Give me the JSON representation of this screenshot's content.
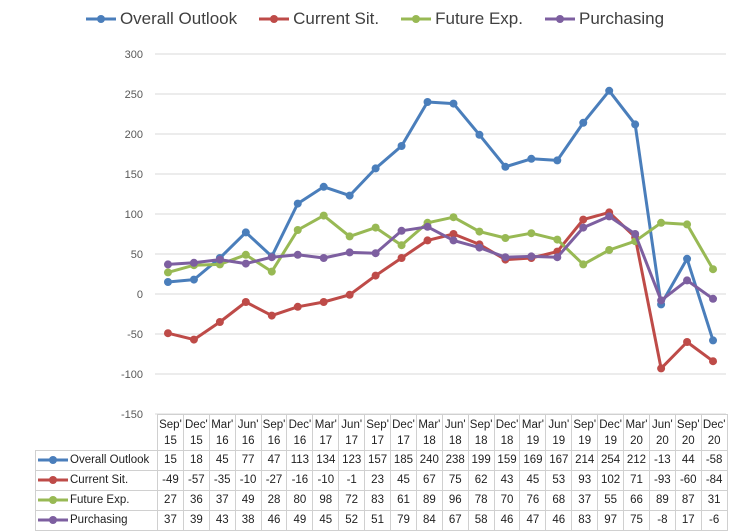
{
  "chart_data": {
    "type": "line",
    "categories": [
      "Sep' 15",
      "Dec' 15",
      "Mar' 16",
      "Jun' 16",
      "Sep' 16",
      "Dec' 16",
      "Mar' 17",
      "Jun' 17",
      "Sep' 17",
      "Dec' 17",
      "Mar' 18",
      "Jun' 18",
      "Sep' 18",
      "Dec' 18",
      "Mar' 19",
      "Jun' 19",
      "Sep' 19",
      "Dec' 19",
      "Mar' 20",
      "Jun' 20",
      "Sep' 20",
      "Dec' 20"
    ],
    "series": [
      {
        "name": "Overall Outlook",
        "color": "#4a7ebb",
        "values": [
          15,
          18,
          45,
          77,
          47,
          113,
          134,
          123,
          157,
          185,
          240,
          238,
          199,
          159,
          169,
          167,
          214,
          254,
          212,
          -13,
          44,
          -58
        ]
      },
      {
        "name": "Current Sit.",
        "color": "#be4b48",
        "values": [
          -49,
          -57,
          -35,
          -10,
          -27,
          -16,
          -10,
          -1,
          23,
          45,
          67,
          75,
          62,
          43,
          45,
          53,
          93,
          102,
          71,
          -93,
          -60,
          -84
        ]
      },
      {
        "name": "Future Exp.",
        "color": "#98b954",
        "values": [
          27,
          36,
          37,
          49,
          28,
          80,
          98,
          72,
          83,
          61,
          89,
          96,
          78,
          70,
          76,
          68,
          37,
          55,
          66,
          89,
          87,
          31
        ]
      },
      {
        "name": "Purchasing",
        "color": "#7d5fa0",
        "values": [
          37,
          39,
          43,
          38,
          46,
          49,
          45,
          52,
          51,
          79,
          84,
          67,
          58,
          46,
          47,
          46,
          83,
          97,
          75,
          -8,
          17,
          -6
        ]
      }
    ],
    "ylim": [
      -150,
      300
    ],
    "yticks": [
      300,
      250,
      200,
      150,
      100,
      50,
      0,
      -50,
      -100,
      -150
    ],
    "grid": true,
    "legend": "top",
    "data_table": true
  }
}
